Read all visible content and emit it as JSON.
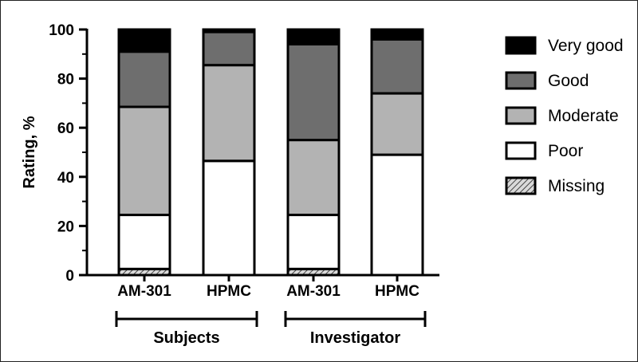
{
  "chart_data": {
    "type": "bar",
    "stacked": true,
    "ylabel": "Rating, %",
    "xlabel": "",
    "ylim": [
      0,
      100
    ],
    "yticks": [
      0,
      20,
      40,
      60,
      80,
      100
    ],
    "categories": [
      "AM-301",
      "HPMC",
      "AM-301",
      "HPMC"
    ],
    "groups": [
      {
        "label": "Subjects",
        "categories": [
          0,
          1
        ]
      },
      {
        "label": "Investigator",
        "categories": [
          2,
          3
        ]
      }
    ],
    "series": [
      {
        "name": "Missing",
        "color": "#999999",
        "pattern": "hatch",
        "values": [
          2.5,
          0,
          2.5,
          0
        ]
      },
      {
        "name": "Poor",
        "color": "#ffffff",
        "values": [
          22,
          46.5,
          22,
          49
        ]
      },
      {
        "name": "Moderate",
        "color": "#b3b3b3",
        "values": [
          44,
          39,
          30.5,
          25
        ]
      },
      {
        "name": "Good",
        "color": "#6e6e6e",
        "values": [
          22.5,
          13.5,
          39,
          22
        ]
      },
      {
        "name": "Very good",
        "color": "#000000",
        "values": [
          9,
          1,
          6,
          4
        ]
      }
    ],
    "legend": {
      "position": "right",
      "order": [
        "Very good",
        "Good",
        "Moderate",
        "Poor",
        "Missing"
      ]
    },
    "grid": false
  }
}
